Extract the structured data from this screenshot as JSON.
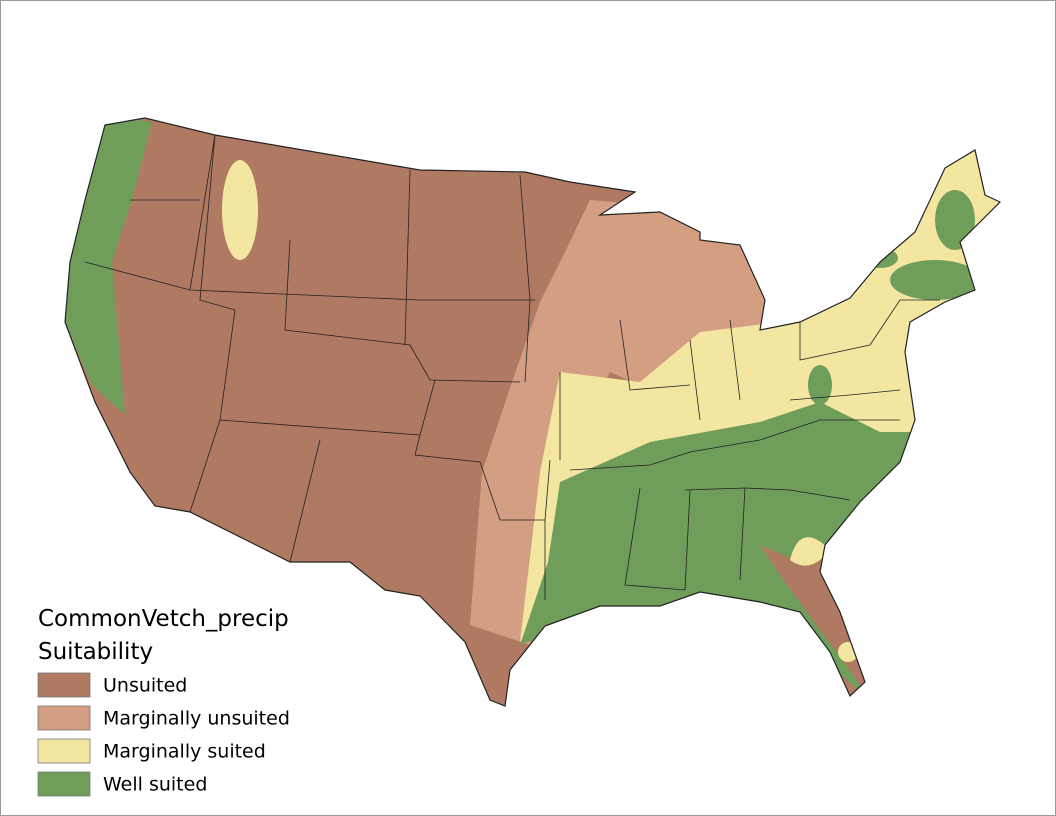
{
  "legend": {
    "title": [
      "CommonVetch_precip",
      "Suitability"
    ],
    "items": [
      {
        "label": "Unsuited",
        "color": "#b07a62"
      },
      {
        "label": "Marginally unsuited",
        "color": "#d49e82"
      },
      {
        "label": "Marginally suited",
        "color": "#f2e6a0"
      },
      {
        "label": "Well suited",
        "color": "#6f9e5b"
      }
    ]
  }
}
